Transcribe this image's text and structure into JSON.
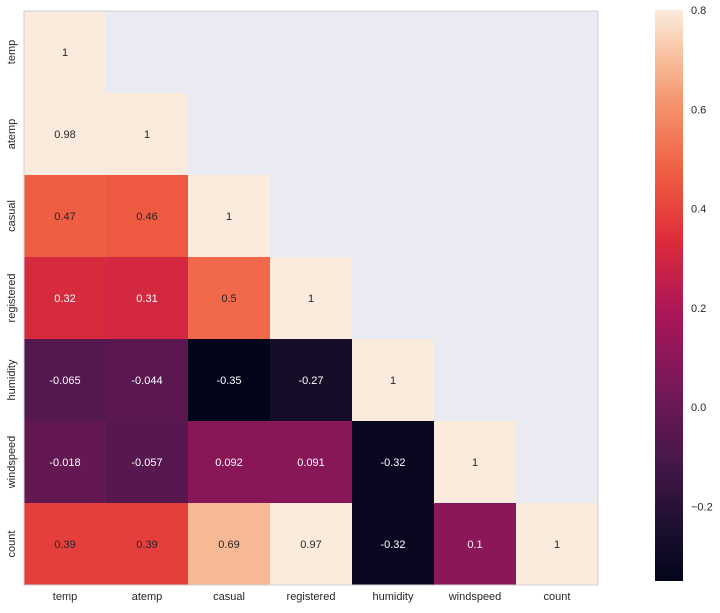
{
  "chart_data": {
    "type": "heatmap",
    "title": "",
    "xlabel": "",
    "ylabel": "",
    "labels": [
      "temp",
      "atemp",
      "casual",
      "registered",
      "humidity",
      "windspeed",
      "count"
    ],
    "matrix": [
      [
        1,
        null,
        null,
        null,
        null,
        null,
        null
      ],
      [
        0.98,
        1,
        null,
        null,
        null,
        null,
        null
      ],
      [
        0.47,
        0.46,
        1,
        null,
        null,
        null,
        null
      ],
      [
        0.32,
        0.31,
        0.5,
        1,
        null,
        null,
        null
      ],
      [
        -0.065,
        -0.044,
        -0.35,
        -0.27,
        1,
        null,
        null
      ],
      [
        -0.018,
        -0.057,
        0.092,
        0.091,
        -0.32,
        1,
        null
      ],
      [
        0.39,
        0.39,
        0.69,
        0.97,
        -0.32,
        0.1,
        1
      ]
    ],
    "annotations": [
      [
        "1",
        "",
        "",
        "",
        "",
        "",
        ""
      ],
      [
        "0.98",
        "1",
        "",
        "",
        "",
        "",
        ""
      ],
      [
        "0.47",
        "0.46",
        "1",
        "",
        "",
        "",
        ""
      ],
      [
        "0.32",
        "0.31",
        "0.5",
        "1",
        "",
        "",
        ""
      ],
      [
        "-0.065",
        "-0.044",
        "-0.35",
        "-0.27",
        "1",
        "",
        ""
      ],
      [
        "-0.018",
        "-0.057",
        "0.092",
        "0.091",
        "-0.32",
        "1",
        ""
      ],
      [
        "0.39",
        "0.39",
        "0.69",
        "0.97",
        "-0.32",
        "0.1",
        "1"
      ]
    ],
    "vmin": -0.35,
    "vmax": 0.8,
    "mask": "upper-triangle",
    "colorbar_ticks": [
      -0.2,
      0.0,
      0.2,
      0.4,
      0.6,
      0.8
    ],
    "colorbar_tick_labels": [
      "−0.2",
      "0.0",
      "0.2",
      "0.4",
      "0.6",
      "0.8"
    ],
    "colormap": "rocket",
    "grid": false,
    "legend": "colorbar-right"
  }
}
